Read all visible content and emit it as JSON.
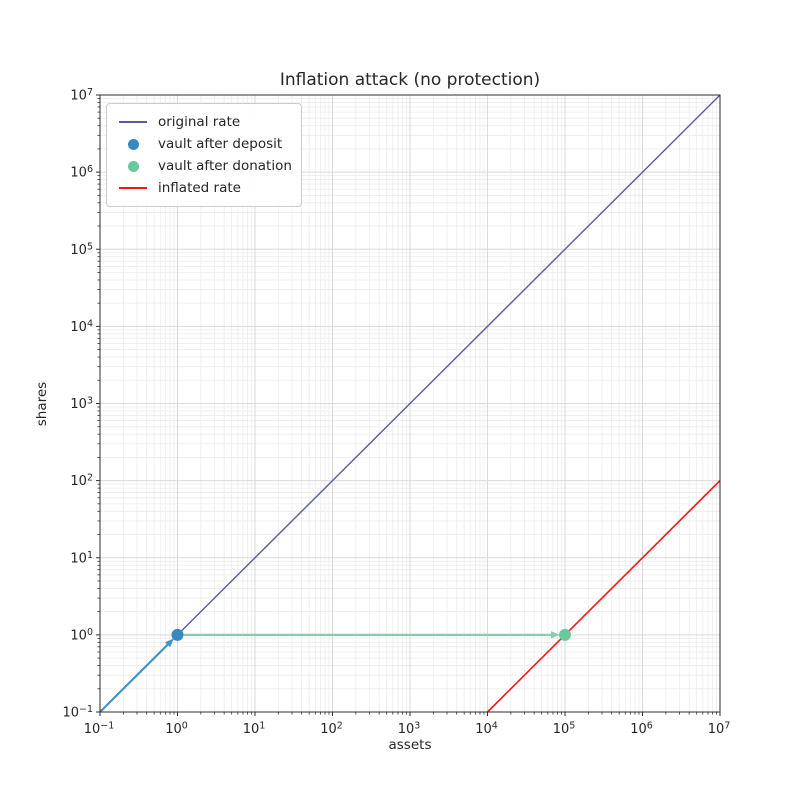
{
  "chart_data": {
    "type": "line",
    "title": "Inflation attack (no protection)",
    "xlabel": "assets",
    "ylabel": "shares",
    "x_scale": "log",
    "y_scale": "log",
    "xlim": [
      0.1,
      10000000
    ],
    "ylim": [
      0.1,
      10000000
    ],
    "x_tick_labels": [
      "10^-1",
      "10^0",
      "10^1",
      "10^2",
      "10^3",
      "10^4",
      "10^5",
      "10^6",
      "10^7"
    ],
    "y_tick_labels": [
      "10^-1",
      "10^0",
      "10^1",
      "10^2",
      "10^3",
      "10^4",
      "10^5",
      "10^6",
      "10^7"
    ],
    "x_tick_exponents": [
      -1,
      0,
      1,
      2,
      3,
      4,
      5,
      6,
      7
    ],
    "y_tick_exponents": [
      -1,
      0,
      1,
      2,
      3,
      4,
      5,
      6,
      7
    ],
    "grid": "major+minor",
    "legend_position": "upper left",
    "series": [
      {
        "name": "original rate",
        "kind": "line",
        "color": "#5c5aa5",
        "width": 1.4,
        "points": [
          [
            0.1,
            0.1
          ],
          [
            10000000,
            10000000
          ]
        ]
      },
      {
        "name": "inflated rate",
        "kind": "line",
        "color": "#fb1510",
        "width": 1.6,
        "points": [
          [
            10000,
            0.1
          ],
          [
            10000000,
            100
          ]
        ]
      }
    ],
    "annotations": [
      {
        "name": "deposit arrow",
        "kind": "arrow",
        "color": "#4093c7",
        "width": 2.2,
        "from": [
          0.1,
          0.1
        ],
        "to": [
          1,
          1
        ]
      },
      {
        "name": "donation arrow",
        "kind": "arrow",
        "color": "#84cfad",
        "width": 2.2,
        "from": [
          1,
          1
        ],
        "to": [
          100000,
          1
        ]
      }
    ],
    "markers": [
      {
        "name": "vault after deposit",
        "color": "#3589c0",
        "point": [
          1,
          1
        ],
        "radius": 6
      },
      {
        "name": "vault after donation",
        "color": "#68c89e",
        "point": [
          100000,
          1
        ],
        "radius": 6
      }
    ],
    "legend": [
      {
        "label": "original rate",
        "swatch": "line",
        "color": "#5c5aa5"
      },
      {
        "label": "vault after deposit",
        "swatch": "dot",
        "color": "#3589c0"
      },
      {
        "label": "vault after donation",
        "swatch": "dot",
        "color": "#68c89e"
      },
      {
        "label": "inflated rate",
        "swatch": "line",
        "color": "#fb1510"
      }
    ],
    "style": {
      "background": "#ffffff",
      "grid_major": "#d9d9d9",
      "grid_minor": "#ececec",
      "spine": "#2e2e2e",
      "tick_color": "#2e2e2e",
      "text_color": "#262626",
      "legend_border": "#cccccc"
    }
  }
}
